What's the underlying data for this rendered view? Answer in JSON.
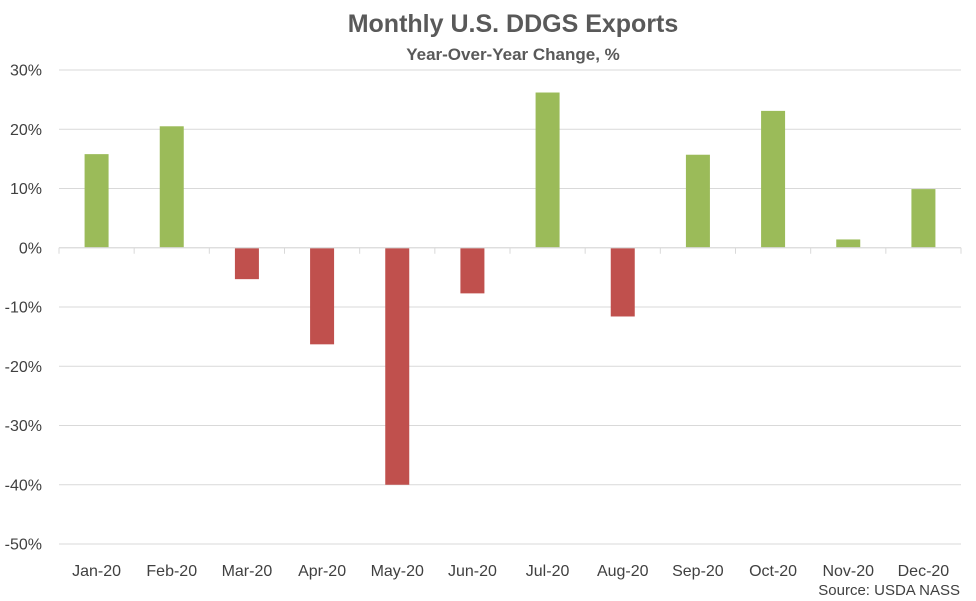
{
  "chart_data": {
    "type": "bar",
    "title": "Monthly U.S. DDGS Exports",
    "subtitle": "Year-Over-Year Change, %",
    "xlabel": "",
    "ylabel": "",
    "categories": [
      "Jan-20",
      "Feb-20",
      "Mar-20",
      "Apr-20",
      "May-20",
      "Jun-20",
      "Jul-20",
      "Aug-20",
      "Sep-20",
      "Oct-20",
      "Nov-20",
      "Dec-20"
    ],
    "values": [
      15.8,
      20.5,
      -5.3,
      -16.3,
      -40.0,
      -7.7,
      26.2,
      -11.6,
      15.7,
      23.1,
      1.4,
      9.9
    ],
    "ylim": [
      -50,
      30
    ],
    "yticks": [
      30,
      20,
      10,
      0,
      -10,
      -20,
      -30,
      -40,
      -50
    ],
    "ytick_labels": [
      "30%",
      "20%",
      "10%",
      "0%",
      "-10%",
      "-20%",
      "-30%",
      "-40%",
      "-50%"
    ],
    "grid": true,
    "colors": {
      "positive": "#9bbb59",
      "negative": "#c0504d",
      "grid": "#d9d9d9",
      "axis": "#d9d9d9"
    },
    "source": "Source: USDA NASS"
  }
}
